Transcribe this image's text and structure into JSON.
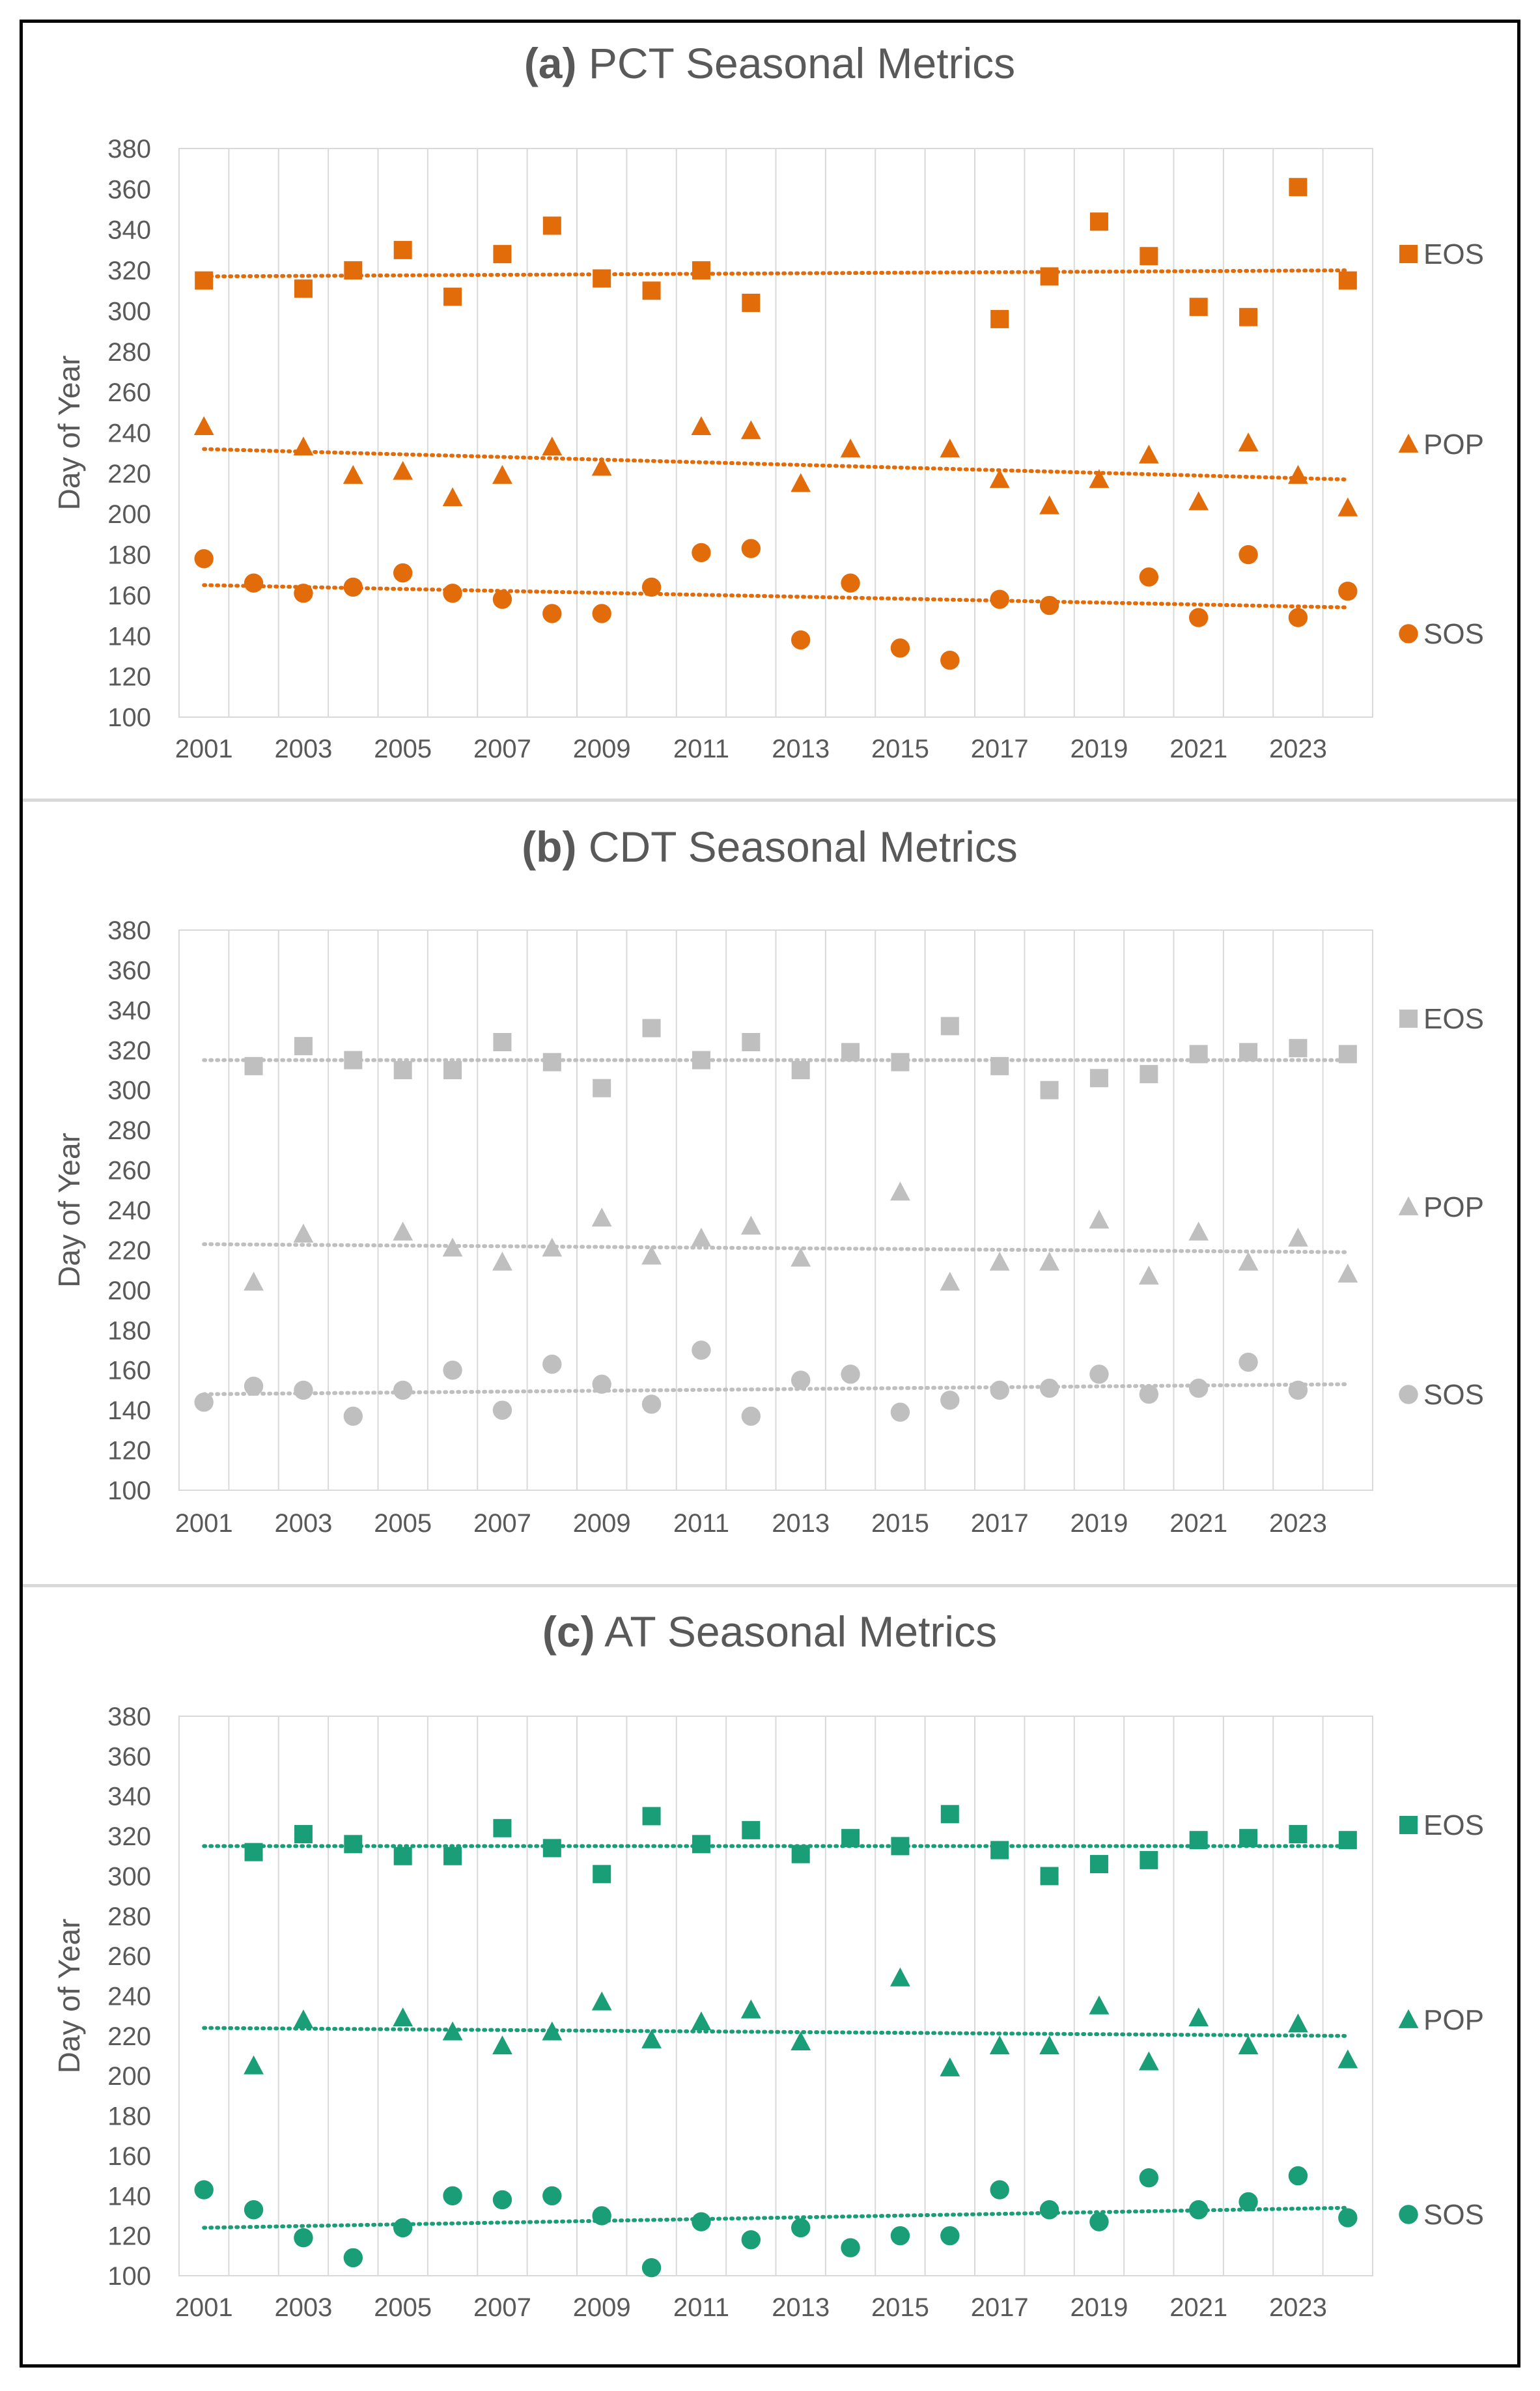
{
  "chart_data": [
    {
      "type": "scatter",
      "panel": "(a)",
      "title": "PCT Seasonal Metrics",
      "ylabel": "Day of Year",
      "xlabel": "",
      "ylim": [
        100,
        380
      ],
      "yticks": [
        100,
        120,
        140,
        160,
        180,
        200,
        220,
        240,
        260,
        280,
        300,
        320,
        340,
        360,
        380
      ],
      "xticks": [
        2001,
        2003,
        2005,
        2007,
        2009,
        2011,
        2013,
        2015,
        2017,
        2019,
        2021,
        2023
      ],
      "color": "#E36C0A",
      "grid": "vertical",
      "series": [
        {
          "name": "EOS",
          "marker": "square",
          "x": [
            2001,
            2003,
            2004,
            2005,
            2006,
            2007,
            2008,
            2009,
            2010,
            2011,
            2012,
            2017,
            2018,
            2019,
            2020,
            2021,
            2022,
            2023,
            2024
          ],
          "y": [
            315,
            311,
            320,
            330,
            307,
            328,
            342,
            316,
            310,
            320,
            304,
            296,
            317,
            344,
            327,
            302,
            297,
            361,
            315
          ],
          "trend": [
            317,
            320
          ]
        },
        {
          "name": "POP",
          "marker": "triangle",
          "x": [
            2001,
            2003,
            2004,
            2005,
            2006,
            2007,
            2008,
            2009,
            2011,
            2012,
            2013,
            2014,
            2016,
            2017,
            2018,
            2019,
            2020,
            2021,
            2022,
            2023,
            2024
          ],
          "y": [
            243,
            233,
            219,
            221,
            208,
            219,
            233,
            223,
            243,
            241,
            215,
            232,
            232,
            217,
            204,
            217,
            229,
            206,
            235,
            219,
            203
          ],
          "trend": [
            232,
            217
          ]
        },
        {
          "name": "SOS",
          "marker": "circle",
          "x": [
            2001,
            2002,
            2003,
            2004,
            2005,
            2006,
            2007,
            2008,
            2009,
            2010,
            2011,
            2012,
            2013,
            2014,
            2015,
            2016,
            2017,
            2018,
            2020,
            2021,
            2022,
            2023,
            2024
          ],
          "y": [
            178,
            166,
            161,
            164,
            171,
            161,
            158,
            151,
            151,
            164,
            181,
            183,
            138,
            166,
            134,
            128,
            158,
            155,
            169,
            149,
            180,
            149,
            162
          ],
          "trend": [
            165,
            154
          ]
        }
      ]
    },
    {
      "type": "scatter",
      "panel": "(b)",
      "title": "CDT Seasonal Metrics",
      "ylabel": "Day of Year",
      "xlabel": "",
      "ylim": [
        100,
        380
      ],
      "yticks": [
        100,
        120,
        140,
        160,
        180,
        200,
        220,
        240,
        260,
        280,
        300,
        320,
        340,
        360,
        380
      ],
      "xticks": [
        2001,
        2003,
        2005,
        2007,
        2009,
        2011,
        2013,
        2015,
        2017,
        2019,
        2021,
        2023
      ],
      "color": "#BFBFBF",
      "grid": "vertical",
      "series": [
        {
          "name": "EOS",
          "marker": "square",
          "x": [
            2002,
            2003,
            2004,
            2005,
            2006,
            2007,
            2008,
            2009,
            2010,
            2011,
            2012,
            2013,
            2014,
            2015,
            2016,
            2017,
            2018,
            2019,
            2020,
            2021,
            2022,
            2023,
            2024
          ],
          "y": [
            312,
            322,
            315,
            310,
            310,
            324,
            314,
            301,
            331,
            315,
            324,
            310,
            319,
            314,
            332,
            312,
            300,
            306,
            308,
            318,
            319,
            321,
            318
          ],
          "trend": [
            315,
            315
          ]
        },
        {
          "name": "POP",
          "marker": "triangle",
          "x": [
            2002,
            2003,
            2005,
            2006,
            2007,
            2008,
            2009,
            2010,
            2011,
            2012,
            2013,
            2015,
            2016,
            2017,
            2018,
            2019,
            2020,
            2021,
            2022,
            2023,
            2024
          ],
          "y": [
            204,
            228,
            229,
            221,
            214,
            221,
            236,
            217,
            226,
            232,
            216,
            249,
            204,
            214,
            214,
            235,
            207,
            229,
            214,
            226,
            208
          ],
          "trend": [
            223,
            219
          ]
        },
        {
          "name": "SOS",
          "marker": "circle",
          "x": [
            2001,
            2002,
            2003,
            2004,
            2005,
            2006,
            2007,
            2008,
            2009,
            2010,
            2011,
            2012,
            2013,
            2014,
            2015,
            2016,
            2017,
            2018,
            2019,
            2020,
            2021,
            2022,
            2023
          ],
          "y": [
            144,
            152,
            150,
            137,
            150,
            160,
            140,
            163,
            153,
            143,
            170,
            137,
            155,
            158,
            139,
            145,
            150,
            151,
            158,
            148,
            151,
            164,
            150
          ],
          "trend": [
            148,
            153
          ]
        }
      ]
    },
    {
      "type": "scatter",
      "panel": "(c)",
      "title": "AT Seasonal Metrics",
      "ylabel": "Day of Year",
      "xlabel": "",
      "ylim": [
        100,
        380
      ],
      "yticks": [
        100,
        120,
        140,
        160,
        180,
        200,
        220,
        240,
        260,
        280,
        300,
        320,
        340,
        360,
        380
      ],
      "xticks": [
        2001,
        2003,
        2005,
        2007,
        2009,
        2011,
        2013,
        2015,
        2017,
        2019,
        2021,
        2023
      ],
      "color": "#1A9E77",
      "grid": "vertical",
      "series": [
        {
          "name": "EOS",
          "marker": "square",
          "x": [
            2002,
            2003,
            2004,
            2005,
            2006,
            2007,
            2008,
            2009,
            2010,
            2011,
            2012,
            2013,
            2014,
            2015,
            2016,
            2017,
            2018,
            2019,
            2020,
            2021,
            2022,
            2023,
            2024
          ],
          "y": [
            312,
            321,
            316,
            310,
            310,
            324,
            314,
            301,
            330,
            316,
            323,
            311,
            319,
            315,
            331,
            313,
            300,
            306,
            308,
            318,
            319,
            321,
            318
          ],
          "trend": [
            315,
            315
          ]
        },
        {
          "name": "POP",
          "marker": "triangle",
          "x": [
            2002,
            2003,
            2005,
            2006,
            2007,
            2008,
            2009,
            2010,
            2011,
            2012,
            2013,
            2015,
            2016,
            2017,
            2018,
            2019,
            2020,
            2021,
            2022,
            2023,
            2024
          ],
          "y": [
            205,
            228,
            229,
            222,
            215,
            222,
            237,
            218,
            227,
            233,
            217,
            249,
            204,
            215,
            215,
            235,
            207,
            229,
            215,
            226,
            208
          ],
          "trend": [
            224,
            220
          ]
        },
        {
          "name": "SOS",
          "marker": "circle",
          "x": [
            2001,
            2002,
            2003,
            2004,
            2005,
            2006,
            2007,
            2008,
            2009,
            2010,
            2011,
            2012,
            2013,
            2014,
            2015,
            2016,
            2017,
            2018,
            2019,
            2020,
            2021,
            2022,
            2023,
            2024
          ],
          "y": [
            143,
            133,
            119,
            109,
            124,
            140,
            138,
            140,
            130,
            104,
            127,
            118,
            124,
            114,
            120,
            120,
            143,
            133,
            127,
            149,
            133,
            137,
            150,
            129
          ],
          "trend": [
            124,
            134
          ]
        }
      ]
    }
  ]
}
